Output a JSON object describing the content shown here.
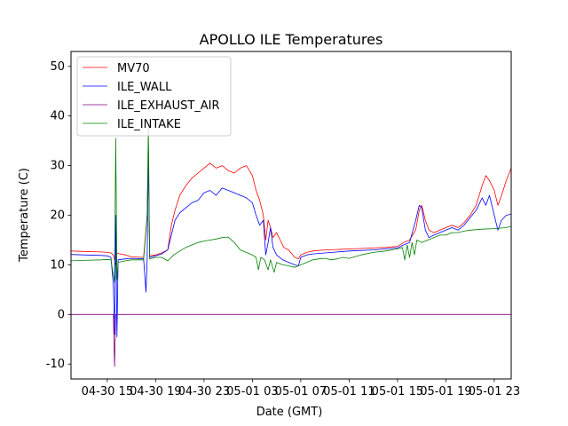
{
  "chart_data": {
    "type": "line",
    "title": "APOLLO ILE Temperatures",
    "xlabel": "Date (GMT)",
    "ylabel": "Temperature (C)",
    "xlim": [
      12.0,
      48.4
    ],
    "ylim": [
      -13,
      53
    ],
    "x_unit": "hours since 04-30 00:00 GMT",
    "yticks": [
      -10,
      0,
      10,
      20,
      30,
      40,
      50
    ],
    "xticks": [
      {
        "value": 15,
        "label": "04-30 15"
      },
      {
        "value": 19,
        "label": "04-30 19"
      },
      {
        "value": 23,
        "label": "04-30 23"
      },
      {
        "value": 27,
        "label": "05-01 03"
      },
      {
        "value": 31,
        "label": "05-01 07"
      },
      {
        "value": 35,
        "label": "05-01 11"
      },
      {
        "value": 39,
        "label": "05-01 15"
      },
      {
        "value": 43,
        "label": "05-01 19"
      },
      {
        "value": 47,
        "label": "05-01 23"
      }
    ],
    "legend_position": "top-left",
    "series": [
      {
        "name": "MV70",
        "color": "#ff0000",
        "points": [
          [
            12.0,
            12.8
          ],
          [
            13.0,
            12.7
          ],
          [
            14.5,
            12.6
          ],
          [
            15.0,
            12.5
          ],
          [
            15.3,
            12.4
          ],
          [
            15.5,
            12.0
          ],
          [
            15.7,
            10.0
          ],
          [
            15.8,
            12.3
          ],
          [
            16.5,
            12.0
          ],
          [
            17.0,
            11.6
          ],
          [
            18.0,
            11.5
          ],
          [
            18.3,
            20.0
          ],
          [
            18.4,
            33.0
          ],
          [
            18.5,
            11.8
          ],
          [
            19.0,
            12.0
          ],
          [
            19.5,
            12.4
          ],
          [
            20.0,
            13.0
          ],
          [
            20.3,
            18.0
          ],
          [
            20.6,
            21.0
          ],
          [
            21.0,
            24.0
          ],
          [
            21.5,
            26.0
          ],
          [
            22.0,
            27.5
          ],
          [
            22.5,
            28.5
          ],
          [
            23.0,
            29.5
          ],
          [
            23.5,
            30.5
          ],
          [
            24.0,
            29.5
          ],
          [
            24.5,
            30.0
          ],
          [
            25.0,
            29.0
          ],
          [
            25.5,
            28.5
          ],
          [
            26.0,
            29.5
          ],
          [
            26.5,
            30.0
          ],
          [
            27.0,
            28.0
          ],
          [
            27.3,
            25.0
          ],
          [
            27.6,
            23.0
          ],
          [
            27.9,
            20.0
          ],
          [
            28.1,
            15.0
          ],
          [
            28.3,
            19.0
          ],
          [
            28.5,
            17.5
          ],
          [
            28.7,
            15.5
          ],
          [
            29.0,
            16.5
          ],
          [
            29.3,
            15.0
          ],
          [
            29.6,
            13.5
          ],
          [
            30.0,
            13.0
          ],
          [
            30.5,
            11.5
          ],
          [
            30.8,
            11.2
          ],
          [
            31.0,
            12.0
          ],
          [
            31.5,
            12.5
          ],
          [
            32.0,
            12.8
          ],
          [
            33.0,
            13.0
          ],
          [
            34.0,
            13.1
          ],
          [
            35.0,
            13.2
          ],
          [
            36.0,
            13.3
          ],
          [
            37.0,
            13.4
          ],
          [
            38.0,
            13.5
          ],
          [
            39.0,
            13.7
          ],
          [
            39.5,
            14.5
          ],
          [
            40.0,
            15.0
          ],
          [
            40.5,
            17.0
          ],
          [
            40.8,
            21.0
          ],
          [
            41.0,
            22.0
          ],
          [
            41.3,
            19.0
          ],
          [
            41.6,
            17.0
          ],
          [
            42.0,
            16.5
          ],
          [
            42.5,
            17.0
          ],
          [
            43.0,
            17.5
          ],
          [
            43.5,
            18.0
          ],
          [
            44.0,
            17.5
          ],
          [
            44.5,
            18.5
          ],
          [
            45.0,
            20.0
          ],
          [
            45.5,
            22.0
          ],
          [
            46.0,
            26.0
          ],
          [
            46.3,
            28.0
          ],
          [
            46.6,
            27.0
          ],
          [
            47.0,
            25.0
          ],
          [
            47.3,
            22.0
          ],
          [
            47.6,
            24.0
          ],
          [
            48.0,
            27.0
          ],
          [
            48.4,
            29.5
          ]
        ]
      },
      {
        "name": "ILE_WALL",
        "color": "#0000ff",
        "points": [
          [
            12.0,
            12.1
          ],
          [
            13.0,
            12.0
          ],
          [
            14.5,
            11.9
          ],
          [
            15.0,
            11.8
          ],
          [
            15.3,
            11.5
          ],
          [
            15.5,
            6.0
          ],
          [
            15.6,
            -4.0
          ],
          [
            15.7,
            20.0
          ],
          [
            15.8,
            -4.5
          ],
          [
            15.9,
            11.0
          ],
          [
            16.5,
            11.2
          ],
          [
            17.0,
            11.3
          ],
          [
            18.0,
            11.2
          ],
          [
            18.2,
            4.5
          ],
          [
            18.3,
            11.0
          ],
          [
            18.4,
            33.0
          ],
          [
            18.5,
            11.5
          ],
          [
            19.0,
            11.8
          ],
          [
            19.5,
            12.2
          ],
          [
            20.0,
            13.0
          ],
          [
            20.3,
            16.0
          ],
          [
            20.6,
            19.0
          ],
          [
            21.0,
            20.5
          ],
          [
            21.5,
            21.5
          ],
          [
            22.0,
            22.5
          ],
          [
            22.5,
            23.0
          ],
          [
            23.0,
            24.5
          ],
          [
            23.5,
            25.0
          ],
          [
            24.0,
            24.0
          ],
          [
            24.5,
            25.5
          ],
          [
            25.0,
            25.0
          ],
          [
            25.5,
            24.5
          ],
          [
            26.0,
            24.0
          ],
          [
            26.5,
            23.5
          ],
          [
            27.0,
            22.5
          ],
          [
            27.3,
            20.0
          ],
          [
            27.6,
            18.0
          ],
          [
            27.9,
            19.0
          ],
          [
            28.1,
            12.0
          ],
          [
            28.3,
            14.5
          ],
          [
            28.5,
            17.5
          ],
          [
            28.7,
            13.5
          ],
          [
            29.0,
            12.0
          ],
          [
            29.5,
            11.0
          ],
          [
            30.0,
            10.5
          ],
          [
            30.5,
            10.0
          ],
          [
            30.8,
            9.8
          ],
          [
            31.0,
            11.5
          ],
          [
            31.5,
            12.0
          ],
          [
            32.0,
            12.2
          ],
          [
            33.0,
            12.4
          ],
          [
            34.0,
            12.6
          ],
          [
            35.0,
            12.8
          ],
          [
            36.0,
            12.9
          ],
          [
            37.0,
            13.0
          ],
          [
            38.0,
            13.2
          ],
          [
            39.0,
            13.4
          ],
          [
            39.5,
            14.0
          ],
          [
            40.0,
            14.5
          ],
          [
            40.5,
            19.0
          ],
          [
            40.8,
            22.0
          ],
          [
            41.0,
            21.5
          ],
          [
            41.3,
            17.0
          ],
          [
            41.6,
            15.5
          ],
          [
            42.0,
            16.0
          ],
          [
            42.5,
            16.5
          ],
          [
            43.0,
            17.0
          ],
          [
            43.5,
            17.5
          ],
          [
            44.0,
            17.0
          ],
          [
            44.5,
            18.0
          ],
          [
            45.0,
            19.5
          ],
          [
            45.5,
            21.0
          ],
          [
            46.0,
            23.5
          ],
          [
            46.3,
            22.0
          ],
          [
            46.6,
            24.0
          ],
          [
            47.0,
            20.0
          ],
          [
            47.3,
            17.0
          ],
          [
            47.6,
            19.0
          ],
          [
            48.0,
            20.0
          ],
          [
            48.4,
            20.2
          ]
        ]
      },
      {
        "name": "ILE_EXHAUST_AIR",
        "color": "#800080",
        "points": [
          [
            12.0,
            0.0
          ],
          [
            15.5,
            0.0
          ],
          [
            15.6,
            -10.5
          ],
          [
            15.7,
            0.0
          ],
          [
            48.4,
            0.0
          ]
        ]
      },
      {
        "name": "ILE_INTAKE",
        "color": "#008000",
        "points": [
          [
            12.0,
            10.8
          ],
          [
            13.0,
            10.9
          ],
          [
            14.5,
            11.0
          ],
          [
            15.0,
            11.1
          ],
          [
            15.3,
            11.0
          ],
          [
            15.5,
            8.0
          ],
          [
            15.6,
            6.5
          ],
          [
            15.7,
            35.5
          ],
          [
            15.8,
            7.0
          ],
          [
            15.9,
            10.5
          ],
          [
            16.5,
            10.8
          ],
          [
            17.0,
            11.0
          ],
          [
            18.0,
            11.0
          ],
          [
            18.3,
            20.0
          ],
          [
            18.4,
            38.0
          ],
          [
            18.5,
            11.2
          ],
          [
            19.0,
            11.5
          ],
          [
            19.5,
            11.5
          ],
          [
            20.0,
            10.8
          ],
          [
            20.5,
            12.0
          ],
          [
            21.0,
            12.8
          ],
          [
            21.5,
            13.5
          ],
          [
            22.0,
            14.0
          ],
          [
            22.5,
            14.5
          ],
          [
            23.0,
            14.8
          ],
          [
            23.5,
            15.0
          ],
          [
            24.0,
            15.2
          ],
          [
            24.5,
            15.5
          ],
          [
            25.0,
            15.6
          ],
          [
            25.5,
            14.5
          ],
          [
            26.0,
            13.0
          ],
          [
            26.5,
            12.5
          ],
          [
            27.0,
            12.0
          ],
          [
            27.3,
            11.5
          ],
          [
            27.5,
            9.0
          ],
          [
            27.7,
            11.5
          ],
          [
            28.0,
            11.0
          ],
          [
            28.3,
            9.0
          ],
          [
            28.5,
            11.0
          ],
          [
            28.8,
            8.5
          ],
          [
            29.0,
            10.5
          ],
          [
            29.5,
            10.0
          ],
          [
            30.0,
            9.8
          ],
          [
            30.5,
            9.5
          ],
          [
            31.0,
            10.0
          ],
          [
            31.5,
            10.5
          ],
          [
            32.0,
            11.0
          ],
          [
            32.5,
            11.2
          ],
          [
            33.0,
            11.3
          ],
          [
            33.5,
            11.0
          ],
          [
            34.0,
            11.2
          ],
          [
            34.5,
            11.5
          ],
          [
            35.0,
            11.3
          ],
          [
            36.0,
            12.0
          ],
          [
            37.0,
            12.5
          ],
          [
            38.0,
            12.8
          ],
          [
            39.0,
            13.2
          ],
          [
            39.4,
            13.5
          ],
          [
            39.6,
            11.0
          ],
          [
            39.8,
            14.0
          ],
          [
            40.0,
            11.5
          ],
          [
            40.2,
            14.5
          ],
          [
            40.4,
            12.0
          ],
          [
            40.6,
            15.0
          ],
          [
            41.0,
            14.5
          ],
          [
            41.5,
            15.0
          ],
          [
            42.0,
            15.5
          ],
          [
            42.5,
            16.0
          ],
          [
            43.0,
            16.0
          ],
          [
            43.5,
            16.5
          ],
          [
            44.0,
            16.5
          ],
          [
            44.5,
            16.8
          ],
          [
            45.0,
            17.0
          ],
          [
            46.0,
            17.2
          ],
          [
            47.0,
            17.3
          ],
          [
            48.0,
            17.5
          ],
          [
            48.4,
            17.8
          ]
        ]
      }
    ]
  }
}
